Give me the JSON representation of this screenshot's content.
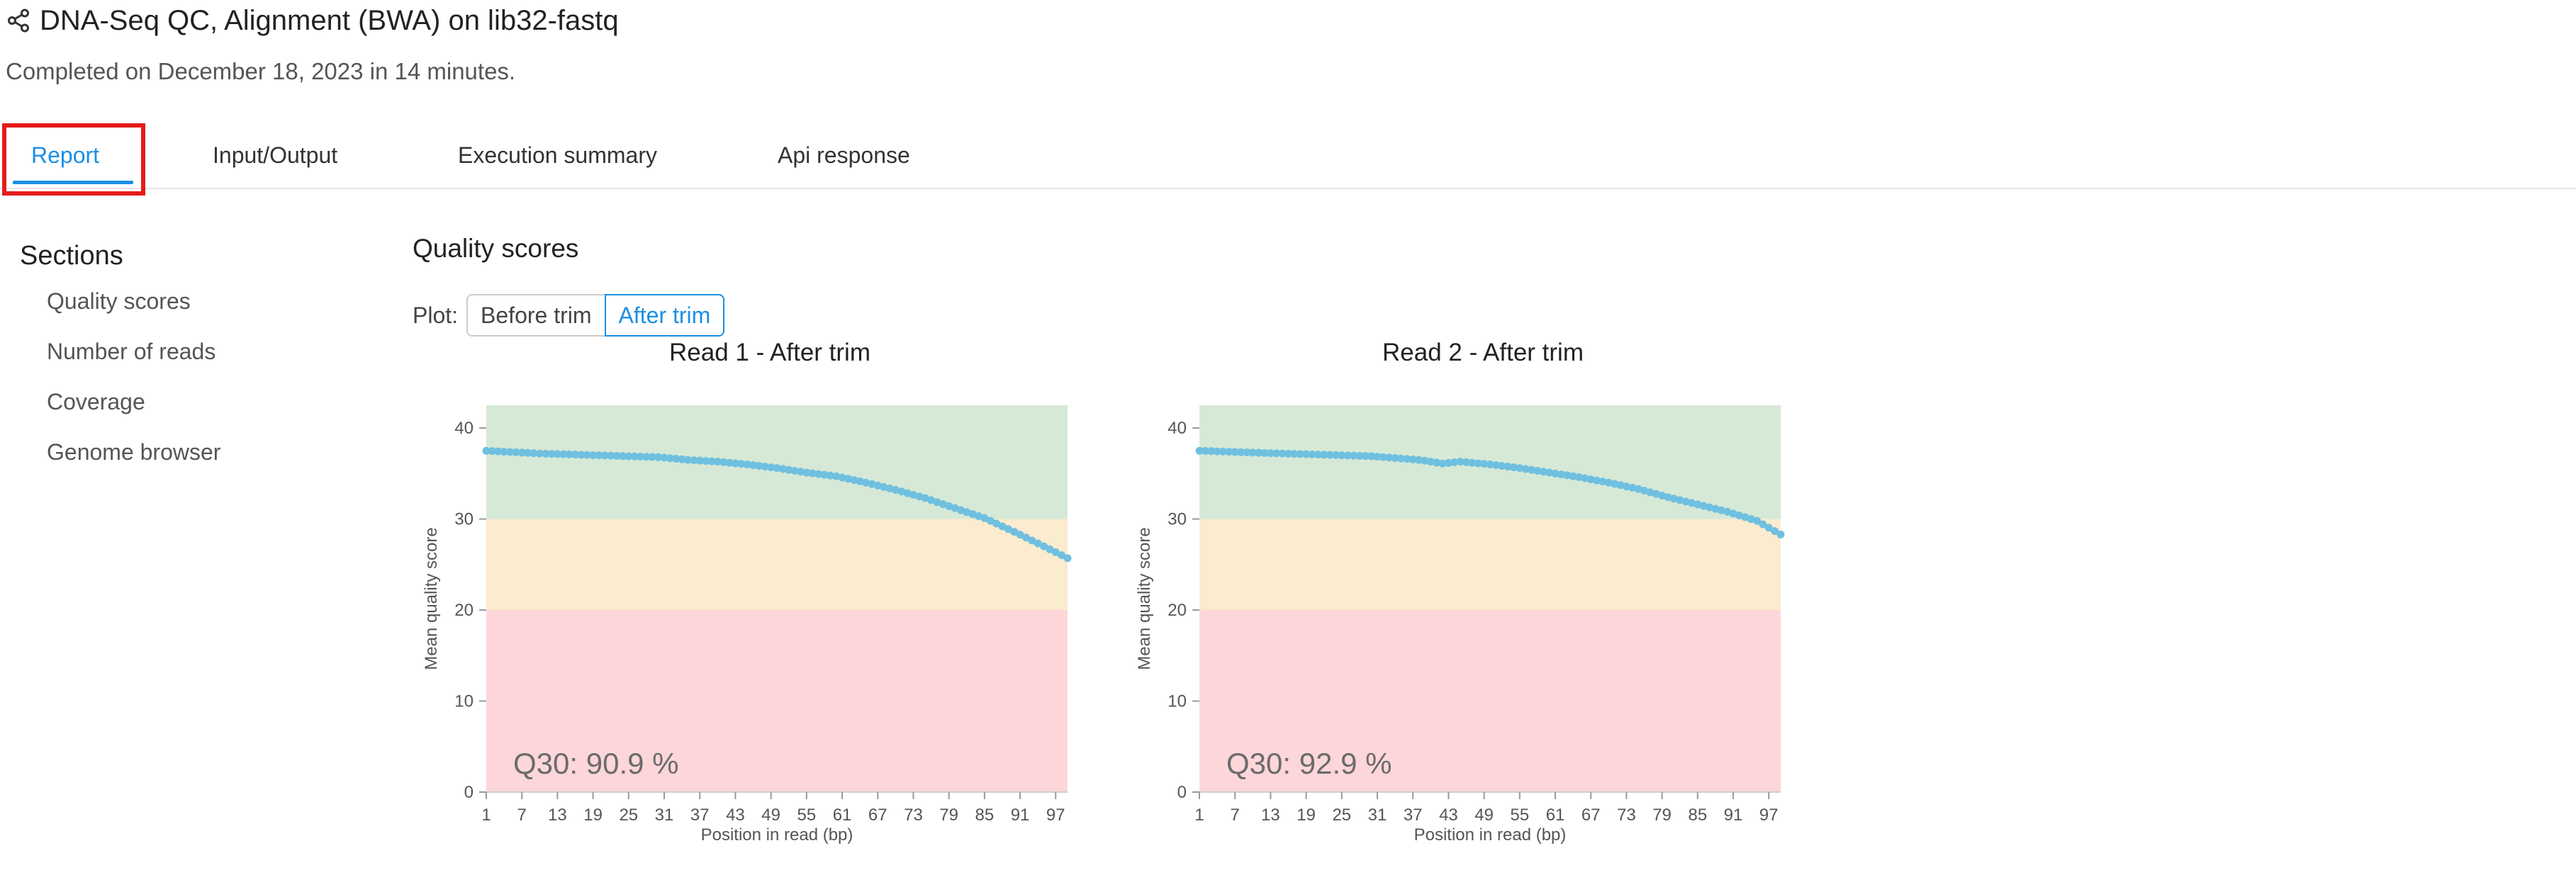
{
  "header": {
    "share_icon": "share-icon",
    "title": "DNA-Seq QC, Alignment (BWA) on lib32-fastq",
    "subtitle": "Completed on December 18, 2023 in 14 minutes."
  },
  "tabs": [
    {
      "label": "Report",
      "active": true
    },
    {
      "label": "Input/Output",
      "active": false
    },
    {
      "label": "Execution summary",
      "active": false
    },
    {
      "label": "Api response",
      "active": false
    }
  ],
  "sidebar": {
    "heading": "Sections",
    "items": [
      {
        "label": "Quality scores"
      },
      {
        "label": "Number of reads"
      },
      {
        "label": "Coverage"
      },
      {
        "label": "Genome browser"
      }
    ]
  },
  "main": {
    "section_title": "Quality scores",
    "plot_label": "Plot:",
    "plot_options": [
      "Before trim",
      "After trim"
    ],
    "selected_plot": "After trim"
  },
  "colors": {
    "accent": "#1a8fe3",
    "highlight_box": "#e41c1c",
    "series": "#6fc0e0",
    "band_good": "#d6e9d6",
    "band_ok": "#fbebcf",
    "band_bad": "#fdd6da"
  },
  "chart_data": [
    {
      "type": "scatter",
      "title": "Read 1 - After trim",
      "xlabel": "Position in read (bp)",
      "ylabel": "Mean quality score",
      "x_ticks": [
        "1",
        "7",
        "13",
        "19",
        "25",
        "31",
        "37",
        "43",
        "49",
        "55",
        "61",
        "67",
        "73",
        "79",
        "85",
        "91",
        "97"
      ],
      "y_ticks": [
        "0",
        "10",
        "20",
        "30",
        "40"
      ],
      "xlim": [
        1,
        99
      ],
      "ylim": [
        0,
        42.5
      ],
      "bands": [
        {
          "from": 0,
          "to": 20,
          "color": "#fdd6da"
        },
        {
          "from": 20,
          "to": 30,
          "color": "#fbebcf"
        },
        {
          "from": 30,
          "to": 42.5,
          "color": "#d6e9d6"
        }
      ],
      "annotation": "Q30: 90.9 %",
      "anchors": [
        [
          1,
          37.5
        ],
        [
          10,
          37.2
        ],
        [
          20,
          37.0
        ],
        [
          30,
          36.8
        ],
        [
          35,
          36.5
        ],
        [
          40,
          36.3
        ],
        [
          45,
          36.0
        ],
        [
          50,
          35.6
        ],
        [
          55,
          35.1
        ],
        [
          60,
          34.7
        ],
        [
          65,
          34.0
        ],
        [
          70,
          33.2
        ],
        [
          75,
          32.3
        ],
        [
          80,
          31.2
        ],
        [
          85,
          30.1
        ],
        [
          90,
          28.6
        ],
        [
          95,
          27.0
        ],
        [
          99,
          25.7
        ]
      ]
    },
    {
      "type": "scatter",
      "title": "Read 2 - After trim",
      "xlabel": "Position in read (bp)",
      "ylabel": "Mean quality score",
      "x_ticks": [
        "1",
        "7",
        "13",
        "19",
        "25",
        "31",
        "37",
        "43",
        "49",
        "55",
        "61",
        "67",
        "73",
        "79",
        "85",
        "91",
        "97"
      ],
      "y_ticks": [
        "0",
        "10",
        "20",
        "30",
        "40"
      ],
      "xlim": [
        1,
        99
      ],
      "ylim": [
        0,
        42.5
      ],
      "bands": [
        {
          "from": 0,
          "to": 20,
          "color": "#fdd6da"
        },
        {
          "from": 20,
          "to": 30,
          "color": "#fbebcf"
        },
        {
          "from": 30,
          "to": 42.5,
          "color": "#d6e9d6"
        }
      ],
      "annotation": "Q30: 92.9 %",
      "anchors": [
        [
          1,
          37.5
        ],
        [
          10,
          37.3
        ],
        [
          20,
          37.1
        ],
        [
          30,
          36.9
        ],
        [
          38,
          36.5
        ],
        [
          42,
          36.1
        ],
        [
          45,
          36.3
        ],
        [
          50,
          36.0
        ],
        [
          55,
          35.6
        ],
        [
          60,
          35.1
        ],
        [
          65,
          34.6
        ],
        [
          70,
          34.0
        ],
        [
          75,
          33.3
        ],
        [
          80,
          32.4
        ],
        [
          85,
          31.6
        ],
        [
          90,
          30.8
        ],
        [
          95,
          29.8
        ],
        [
          99,
          28.3
        ]
      ]
    }
  ]
}
